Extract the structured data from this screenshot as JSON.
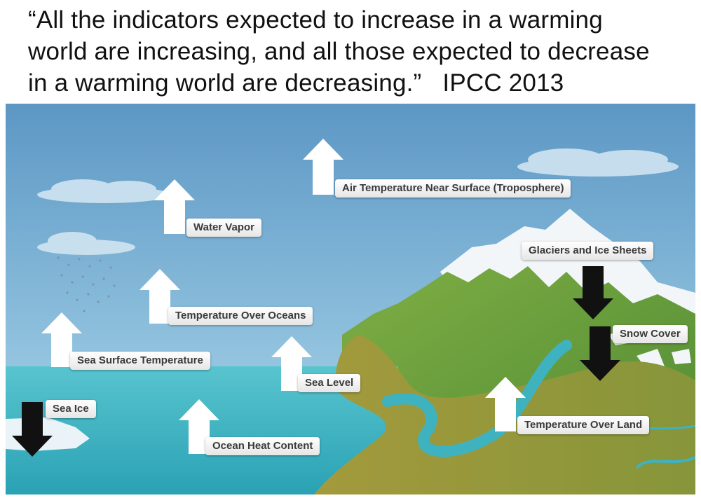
{
  "quote": {
    "line1": "“All the indicators expected to increase in a warming",
    "line2": "world are increasing, and all those expected to decrease",
    "line3": "in a warming world are decreasing.”",
    "source": "IPCC 2013"
  },
  "indicators": [
    {
      "id": "air-temperature",
      "label": "Air Temperature Near Surface (Troposphere)",
      "direction": "up"
    },
    {
      "id": "water-vapor",
      "label": "Water Vapor",
      "direction": "up"
    },
    {
      "id": "temperature-over-oceans",
      "label": "Temperature Over Oceans",
      "direction": "up"
    },
    {
      "id": "sea-surface-temperature",
      "label": "Sea Surface Temperature",
      "direction": "up"
    },
    {
      "id": "sea-level",
      "label": "Sea Level",
      "direction": "up"
    },
    {
      "id": "sea-ice",
      "label": "Sea Ice",
      "direction": "down"
    },
    {
      "id": "ocean-heat-content",
      "label": "Ocean Heat Content",
      "direction": "up"
    },
    {
      "id": "glaciers-ice-sheets",
      "label": "Glaciers and Ice Sheets",
      "direction": "down"
    },
    {
      "id": "snow-cover",
      "label": "Snow Cover",
      "direction": "down"
    },
    {
      "id": "temperature-over-land",
      "label": "Temperature Over Land",
      "direction": "up"
    }
  ],
  "colors": {
    "sky": "#5f9fc8",
    "ocean": "#3fb2c0",
    "land": "#6a9a3c",
    "snow": "#ffffff",
    "arrow_up": "#ffffff",
    "arrow_down": "#111111"
  }
}
